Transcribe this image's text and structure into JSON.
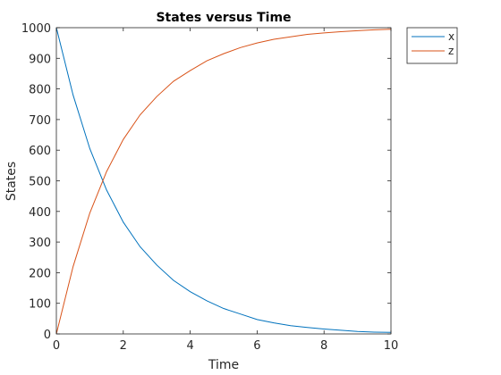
{
  "chart_data": {
    "type": "line",
    "title": "States versus Time",
    "xlabel": "Time",
    "ylabel": "States",
    "xlim": [
      0,
      10
    ],
    "ylim": [
      0,
      1000
    ],
    "xticks": [
      0,
      2,
      4,
      6,
      8,
      10
    ],
    "yticks": [
      0,
      100,
      200,
      300,
      400,
      500,
      600,
      700,
      800,
      900,
      1000
    ],
    "grid": false,
    "legend_position": "outside top-right",
    "series": [
      {
        "name": "x",
        "color": "#0072BD",
        "x": [
          0,
          0.5,
          1,
          1.5,
          2,
          2.5,
          3,
          3.5,
          4,
          4.5,
          5,
          5.5,
          6,
          6.5,
          7,
          7.5,
          8,
          8.5,
          9,
          9.5,
          10
        ],
        "y": [
          1000,
          780,
          605,
          470,
          365,
          285,
          225,
          175,
          138,
          108,
          83,
          65,
          47,
          36,
          27,
          21,
          16,
          12,
          8,
          6,
          5
        ]
      },
      {
        "name": "z",
        "color": "#D95319",
        "x": [
          0,
          0.5,
          1,
          1.5,
          2,
          2.5,
          3,
          3.5,
          4,
          4.5,
          5,
          5.5,
          6,
          6.5,
          7,
          7.5,
          8,
          8.5,
          9,
          9.5,
          10
        ],
        "y": [
          0,
          220,
          395,
          530,
          635,
          715,
          775,
          825,
          860,
          892,
          915,
          935,
          950,
          962,
          970,
          978,
          983,
          987,
          990,
          993,
          995
        ]
      }
    ]
  }
}
